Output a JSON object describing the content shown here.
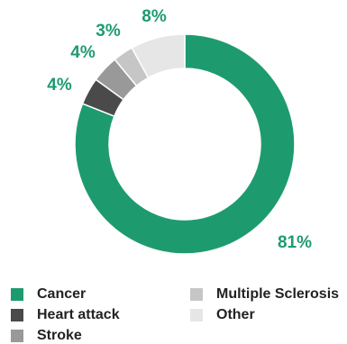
{
  "chart_data": {
    "type": "pie",
    "variant": "donut",
    "categories": [
      "Cancer",
      "Heart attack",
      "Stroke",
      "Multiple Sclerosis",
      "Other"
    ],
    "values": [
      81,
      4,
      4,
      3,
      8
    ],
    "value_labels": [
      "81%",
      "4%",
      "4%",
      "3%",
      "8%"
    ],
    "colors": [
      "#1e9b6e",
      "#4a4a4a",
      "#999999",
      "#c6c6c6",
      "#e6e6e6"
    ],
    "label_color": "#1e9b6e",
    "legend_position": "bottom",
    "title": "",
    "xlabel": "",
    "ylabel": ""
  }
}
